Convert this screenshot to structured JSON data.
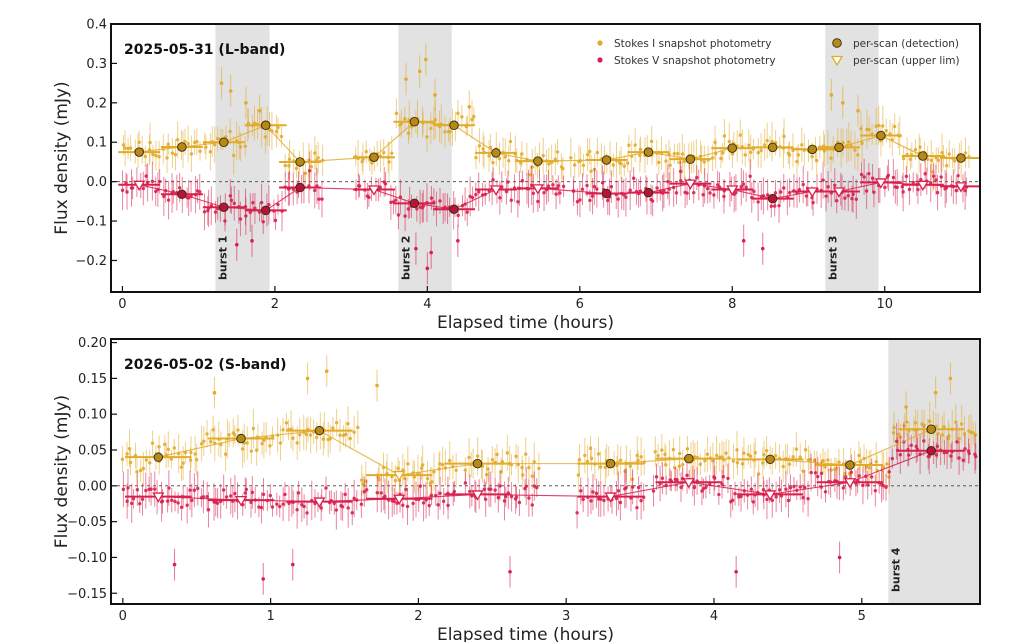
{
  "colors": {
    "stokes_i": "#e2ab2a",
    "stokes_v": "#d8204f",
    "burst_shade": "#e2e2e2",
    "scan_i_fill": "#b58a1b",
    "scan_v_fill": "#b4153c"
  },
  "chart_data": [
    {
      "type": "scatter",
      "title": "2025-05-31 (L-band)",
      "xlabel": "Elapsed time (hours)",
      "ylabel": "Flux density (mJy)",
      "xlim": [
        -0.15,
        11.25
      ],
      "ylim": [
        -0.28,
        0.4
      ],
      "xticks": [
        0,
        2,
        4,
        6,
        8,
        10
      ],
      "yticks": [
        -0.2,
        -0.1,
        0.0,
        0.1,
        0.2,
        0.3,
        0.4
      ],
      "ytick_labels": [
        "−0.2",
        "−0.1",
        "0.0",
        "0.1",
        "0.2",
        "0.3",
        "0.4"
      ],
      "legend": {
        "position": "top-right",
        "entries": [
          "Stokes I  snapshot photometry",
          "Stokes V  snapshot photometry",
          "per-scan (detection)",
          "per-scan (upper lim)"
        ]
      },
      "bursts": [
        {
          "label": "burst 1",
          "x0": 1.22,
          "x1": 1.93
        },
        {
          "label": "burst 2",
          "x0": 3.62,
          "x1": 4.32
        },
        {
          "label": "burst 3",
          "x0": 9.22,
          "x1": 9.92
        }
      ],
      "scan_x_width": 0.55,
      "snapshot_ranges": [
        [
          0.0,
          2.65
        ],
        [
          3.05,
          5.8
        ],
        [
          5.9,
          8.3
        ],
        [
          8.35,
          11.1
        ]
      ],
      "stokes_i_scans": [
        {
          "x": 0.22,
          "y": 0.075,
          "detection": true
        },
        {
          "x": 0.78,
          "y": 0.088,
          "detection": true
        },
        {
          "x": 1.33,
          "y": 0.1,
          "detection": true
        },
        {
          "x": 1.88,
          "y": 0.143,
          "detection": true
        },
        {
          "x": 2.33,
          "y": 0.05,
          "detection": true
        },
        {
          "x": 3.3,
          "y": 0.062,
          "detection": true
        },
        {
          "x": 3.83,
          "y": 0.152,
          "detection": true
        },
        {
          "x": 4.35,
          "y": 0.143,
          "detection": true
        },
        {
          "x": 4.9,
          "y": 0.073,
          "detection": true
        },
        {
          "x": 5.45,
          "y": 0.052,
          "detection": true
        },
        {
          "x": 6.35,
          "y": 0.055,
          "detection": true
        },
        {
          "x": 6.9,
          "y": 0.075,
          "detection": true
        },
        {
          "x": 7.45,
          "y": 0.057,
          "detection": true
        },
        {
          "x": 8.0,
          "y": 0.085,
          "detection": true
        },
        {
          "x": 8.53,
          "y": 0.087,
          "detection": true
        },
        {
          "x": 9.05,
          "y": 0.082,
          "detection": true
        },
        {
          "x": 9.4,
          "y": 0.087,
          "detection": true
        },
        {
          "x": 9.95,
          "y": 0.117,
          "detection": true
        },
        {
          "x": 10.5,
          "y": 0.065,
          "detection": true
        },
        {
          "x": 11.0,
          "y": 0.06,
          "detection": true
        }
      ],
      "stokes_v_scans": [
        {
          "x": 0.22,
          "y": -0.008,
          "detection": false
        },
        {
          "x": 0.78,
          "y": -0.032,
          "detection": true
        },
        {
          "x": 1.33,
          "y": -0.065,
          "detection": true
        },
        {
          "x": 1.88,
          "y": -0.073,
          "detection": true
        },
        {
          "x": 2.33,
          "y": -0.015,
          "detection": true
        },
        {
          "x": 3.3,
          "y": -0.02,
          "detection": false
        },
        {
          "x": 3.83,
          "y": -0.055,
          "detection": true
        },
        {
          "x": 4.35,
          "y": -0.07,
          "detection": true
        },
        {
          "x": 4.9,
          "y": -0.02,
          "detection": false
        },
        {
          "x": 5.45,
          "y": -0.017,
          "detection": false
        },
        {
          "x": 6.35,
          "y": -0.03,
          "detection": true
        },
        {
          "x": 6.9,
          "y": -0.028,
          "detection": true
        },
        {
          "x": 7.45,
          "y": -0.005,
          "detection": false
        },
        {
          "x": 8.0,
          "y": -0.02,
          "detection": false
        },
        {
          "x": 8.53,
          "y": -0.043,
          "detection": true
        },
        {
          "x": 9.05,
          "y": -0.025,
          "detection": false
        },
        {
          "x": 9.4,
          "y": -0.025,
          "detection": false
        },
        {
          "x": 9.95,
          "y": -0.002,
          "detection": false
        },
        {
          "x": 10.5,
          "y": -0.008,
          "detection": false
        },
        {
          "x": 11.0,
          "y": -0.012,
          "detection": false
        }
      ],
      "stokes_i_peaks": [
        {
          "x": 1.3,
          "y": 0.25
        },
        {
          "x": 1.42,
          "y": 0.23
        },
        {
          "x": 1.62,
          "y": 0.2
        },
        {
          "x": 1.8,
          "y": 0.18
        },
        {
          "x": 3.72,
          "y": 0.26
        },
        {
          "x": 3.9,
          "y": 0.28
        },
        {
          "x": 3.98,
          "y": 0.31
        },
        {
          "x": 4.1,
          "y": 0.22
        },
        {
          "x": 4.55,
          "y": 0.19
        },
        {
          "x": 9.3,
          "y": 0.22
        },
        {
          "x": 9.45,
          "y": 0.2
        },
        {
          "x": 9.65,
          "y": 0.18
        }
      ],
      "stokes_v_dips": [
        {
          "x": 1.5,
          "y": -0.16
        },
        {
          "x": 1.7,
          "y": -0.15
        },
        {
          "x": 3.85,
          "y": -0.17
        },
        {
          "x": 4.0,
          "y": -0.22
        },
        {
          "x": 4.05,
          "y": -0.18
        },
        {
          "x": 4.4,
          "y": -0.15
        },
        {
          "x": 8.15,
          "y": -0.15
        },
        {
          "x": 8.4,
          "y": -0.17
        }
      ],
      "scan_line_points": [
        {
          "x": 0.22,
          "y": 0.075
        },
        {
          "x": 0.78,
          "y": 0.088
        },
        {
          "x": 1.33,
          "y": 0.1
        },
        {
          "x": 1.88,
          "y": 0.143
        },
        {
          "x": 2.33,
          "y": 0.05
        },
        {
          "x": 3.3,
          "y": 0.062
        },
        {
          "x": 3.83,
          "y": 0.152
        },
        {
          "x": 4.35,
          "y": 0.143
        }
      ]
    },
    {
      "type": "scatter",
      "title": "2026-05-02 (S-band)",
      "xlabel": "Elapsed time (hours)",
      "ylabel": "Flux density (mJy)",
      "xlim": [
        -0.08,
        5.8
      ],
      "ylim": [
        -0.165,
        0.205
      ],
      "xticks": [
        0,
        1,
        2,
        3,
        4,
        5
      ],
      "yticks": [
        -0.15,
        -0.1,
        -0.05,
        0.0,
        0.05,
        0.1,
        0.15,
        0.2
      ],
      "ytick_labels": [
        "−0.15",
        "−0.10",
        "−0.05",
        "0.00",
        "0.05",
        "0.10",
        "0.15",
        "0.20"
      ],
      "bursts": [
        {
          "label": "burst 4",
          "x0": 5.18,
          "x1": 5.8
        }
      ],
      "scan_x_width": 0.45,
      "snapshot_ranges": [
        [
          0.0,
          1.65
        ],
        [
          1.72,
          2.25
        ],
        [
          2.32,
          2.82
        ],
        [
          3.08,
          3.55
        ],
        [
          3.6,
          5.78
        ]
      ],
      "stokes_i_scans": [
        {
          "x": 0.24,
          "y": 0.04,
          "detection": true
        },
        {
          "x": 0.8,
          "y": 0.066,
          "detection": true
        },
        {
          "x": 1.33,
          "y": 0.077,
          "detection": true
        },
        {
          "x": 1.87,
          "y": 0.015,
          "detection": false
        },
        {
          "x": 2.4,
          "y": 0.031,
          "detection": true
        },
        {
          "x": 3.3,
          "y": 0.031,
          "detection": true
        },
        {
          "x": 3.83,
          "y": 0.038,
          "detection": true
        },
        {
          "x": 4.38,
          "y": 0.037,
          "detection": true
        },
        {
          "x": 4.92,
          "y": 0.029,
          "detection": true
        },
        {
          "x": 5.47,
          "y": 0.079,
          "detection": true
        }
      ],
      "stokes_v_scans": [
        {
          "x": 0.24,
          "y": -0.015,
          "detection": false
        },
        {
          "x": 0.8,
          "y": -0.02,
          "detection": false
        },
        {
          "x": 1.33,
          "y": -0.022,
          "detection": false
        },
        {
          "x": 1.87,
          "y": -0.018,
          "detection": false
        },
        {
          "x": 2.4,
          "y": -0.012,
          "detection": false
        },
        {
          "x": 3.3,
          "y": -0.015,
          "detection": false
        },
        {
          "x": 3.83,
          "y": 0.005,
          "detection": false
        },
        {
          "x": 4.38,
          "y": -0.012,
          "detection": false
        },
        {
          "x": 4.92,
          "y": 0.005,
          "detection": false
        },
        {
          "x": 5.47,
          "y": 0.049,
          "detection": true
        }
      ],
      "stokes_i_peaks": [
        {
          "x": 1.25,
          "y": 0.15
        },
        {
          "x": 1.38,
          "y": 0.16
        },
        {
          "x": 1.72,
          "y": 0.14
        },
        {
          "x": 0.62,
          "y": 0.13
        },
        {
          "x": 5.6,
          "y": 0.15
        },
        {
          "x": 5.5,
          "y": 0.13
        },
        {
          "x": 5.3,
          "y": 0.11
        }
      ],
      "stokes_v_dips": [
        {
          "x": 0.95,
          "y": -0.13
        },
        {
          "x": 1.15,
          "y": -0.11
        },
        {
          "x": 2.62,
          "y": -0.12
        },
        {
          "x": 4.15,
          "y": -0.12
        },
        {
          "x": 0.35,
          "y": -0.11
        },
        {
          "x": 4.85,
          "y": -0.1
        }
      ],
      "scan_line_points": [
        {
          "x": 0.24,
          "y": 0.04
        },
        {
          "x": 0.8,
          "y": 0.066
        },
        {
          "x": 1.33,
          "y": 0.077
        },
        {
          "x": 1.87,
          "y": 0.015
        },
        {
          "x": 2.4,
          "y": 0.031
        },
        {
          "x": 3.3,
          "y": 0.031
        },
        {
          "x": 3.83,
          "y": 0.038
        },
        {
          "x": 4.38,
          "y": 0.037
        },
        {
          "x": 4.92,
          "y": 0.029
        },
        {
          "x": 5.47,
          "y": 0.079
        }
      ]
    }
  ]
}
